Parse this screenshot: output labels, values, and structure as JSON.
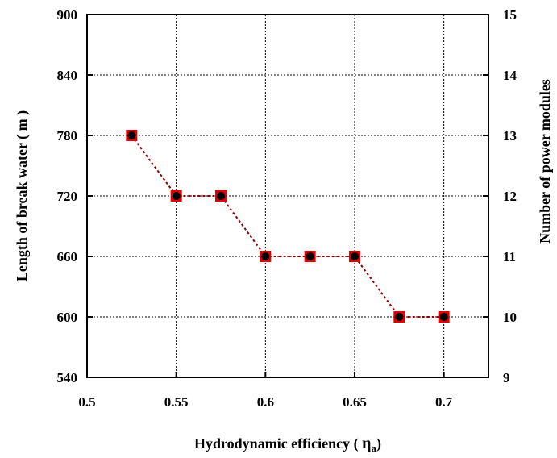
{
  "chart_data": {
    "type": "line",
    "title": "",
    "xlabel": "Hydrodynamic efficiency ( ",
    "xlabel_symbol": "η",
    "xlabel_sub": "a",
    "xlabel_end": ")",
    "ylabel": "Length of break water ( m )",
    "y2label": "Number of power modules",
    "xlim": [
      0.5,
      0.725
    ],
    "ylim": [
      540,
      900
    ],
    "y2lim": [
      9,
      15
    ],
    "xticks": [
      0.5,
      0.55,
      0.6,
      0.65,
      0.7
    ],
    "xtick_labels": [
      "0.5",
      "0.55",
      "0.6",
      "0.65",
      "0.7"
    ],
    "yticks": [
      540,
      600,
      660,
      720,
      780,
      840,
      900
    ],
    "ytick_labels": [
      "540",
      "600",
      "660",
      "720",
      "780",
      "840",
      "900"
    ],
    "y2ticks": [
      9,
      10,
      11,
      12,
      13,
      14,
      15
    ],
    "y2tick_labels": [
      "9",
      "10",
      "11",
      "12",
      "13",
      "14",
      "15"
    ],
    "grid": true,
    "series": [
      {
        "axis": "left",
        "marker": "square",
        "color": "#e00000",
        "x": [
          0.525,
          0.55,
          0.575,
          0.6,
          0.625,
          0.65,
          0.675,
          0.7
        ],
        "values": [
          780,
          720,
          720,
          660,
          660,
          660,
          600,
          600
        ]
      },
      {
        "axis": "right",
        "marker": "circle",
        "color": "#000000",
        "x": [
          0.525,
          0.55,
          0.575,
          0.6,
          0.625,
          0.65,
          0.675,
          0.7
        ],
        "values": [
          13,
          12,
          12,
          11,
          11,
          11,
          10,
          10
        ]
      }
    ]
  }
}
